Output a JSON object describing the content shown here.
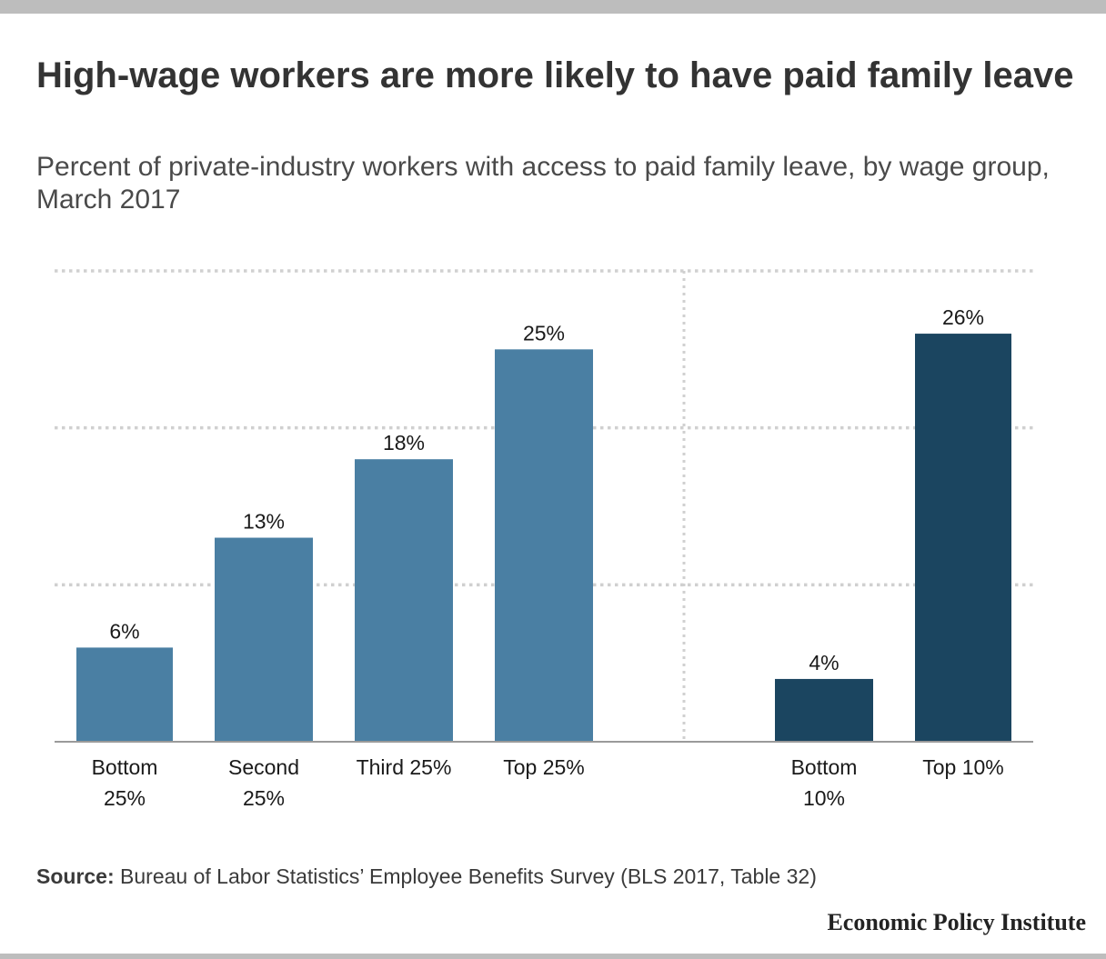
{
  "header": {
    "title": "High-wage workers are more likely to have paid family leave",
    "subtitle": "Percent of private-industry workers with access to paid family leave, by wage group, March 2017"
  },
  "footer": {
    "source_label": "Source:",
    "source_text": "Bureau of Labor Statistics’ Employee Benefits Survey (BLS 2017, Table 32)",
    "brand": "Economic Policy Institute"
  },
  "chart_data": {
    "type": "bar",
    "title": "High-wage workers are more likely to have paid family leave",
    "subtitle": "Percent of private-industry workers with access to paid family leave, by wage group, March 2017",
    "xlabel": "",
    "ylabel": "",
    "ylim": [
      0,
      30
    ],
    "grid": true,
    "colors": {
      "quartile_bars": "#4a7fa3",
      "decile_bars": "#1b4560",
      "gridline": "#d0d0d0",
      "baseline": "#9a9a9a"
    },
    "groups": [
      {
        "categories": [
          [
            "Bottom",
            "25%"
          ],
          [
            "Second",
            "25%"
          ],
          [
            "Third 25%"
          ],
          [
            "Top 25%"
          ]
        ],
        "values": [
          6,
          13,
          18,
          25
        ],
        "labels": [
          "6%",
          "13%",
          "18%",
          "25%"
        ],
        "color": "#4a7fa3"
      },
      {
        "categories": [
          [
            "Bottom",
            "10%"
          ],
          [
            "Top 10%"
          ]
        ],
        "values": [
          4,
          26
        ],
        "labels": [
          "4%",
          "26%"
        ],
        "color": "#1b4560"
      }
    ]
  }
}
